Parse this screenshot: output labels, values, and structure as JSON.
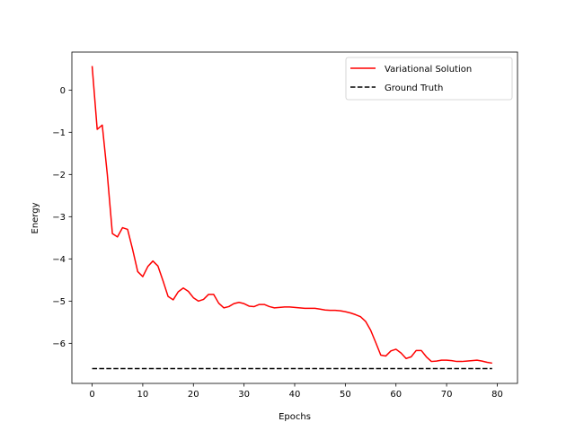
{
  "chart_data": {
    "type": "line",
    "title": "",
    "xlabel": "Epochs",
    "ylabel": "Energy",
    "xlim": [
      -4,
      84
    ],
    "ylim": [
      -6.95,
      0.9
    ],
    "xticks": [
      0,
      10,
      20,
      30,
      40,
      50,
      60,
      70,
      80
    ],
    "yticks": [
      0,
      -1,
      -2,
      -3,
      -4,
      -5,
      -6
    ],
    "ytick_labels": [
      "0",
      "−1",
      "−2",
      "−3",
      "−4",
      "−5",
      "−6"
    ],
    "grid": false,
    "legend_position": "top-right",
    "series": [
      {
        "name": "Variational Solution",
        "color": "#ff0000",
        "style": "solid",
        "x": [
          0,
          1,
          2,
          3,
          4,
          5,
          6,
          7,
          8,
          9,
          10,
          11,
          12,
          13,
          14,
          15,
          16,
          17,
          18,
          19,
          20,
          21,
          22,
          23,
          24,
          25,
          26,
          27,
          28,
          29,
          30,
          31,
          32,
          33,
          34,
          35,
          36,
          37,
          38,
          39,
          40,
          41,
          42,
          43,
          44,
          45,
          46,
          47,
          48,
          49,
          50,
          51,
          52,
          53,
          54,
          55,
          56,
          57,
          58,
          59,
          60,
          61,
          62,
          63,
          64,
          65,
          66,
          67,
          68,
          69,
          70,
          71,
          72,
          73,
          74,
          75,
          76,
          77,
          78,
          79
        ],
        "y": [
          0.57,
          -0.93,
          -0.83,
          -2.0,
          -3.4,
          -3.48,
          -3.26,
          -3.3,
          -3.78,
          -4.3,
          -4.42,
          -4.18,
          -4.05,
          -4.17,
          -4.52,
          -4.89,
          -4.97,
          -4.78,
          -4.69,
          -4.77,
          -4.92,
          -5.0,
          -4.96,
          -4.84,
          -4.84,
          -5.05,
          -5.16,
          -5.13,
          -5.06,
          -5.03,
          -5.06,
          -5.12,
          -5.13,
          -5.08,
          -5.08,
          -5.13,
          -5.16,
          -5.15,
          -5.14,
          -5.14,
          -5.15,
          -5.16,
          -5.17,
          -5.17,
          -5.17,
          -5.19,
          -5.21,
          -5.22,
          -5.22,
          -5.23,
          -5.25,
          -5.28,
          -5.32,
          -5.37,
          -5.48,
          -5.69,
          -5.98,
          -6.28,
          -6.3,
          -6.18,
          -6.14,
          -6.23,
          -6.36,
          -6.32,
          -6.17,
          -6.17,
          -6.32,
          -6.43,
          -6.42,
          -6.4,
          -6.4,
          -6.41,
          -6.43,
          -6.43,
          -6.42,
          -6.41,
          -6.4,
          -6.42,
          -6.45,
          -6.47
        ]
      },
      {
        "name": "Ground Truth",
        "color": "#000000",
        "style": "dashed",
        "x": [
          0,
          79
        ],
        "y": [
          -6.6,
          -6.6
        ]
      }
    ]
  }
}
